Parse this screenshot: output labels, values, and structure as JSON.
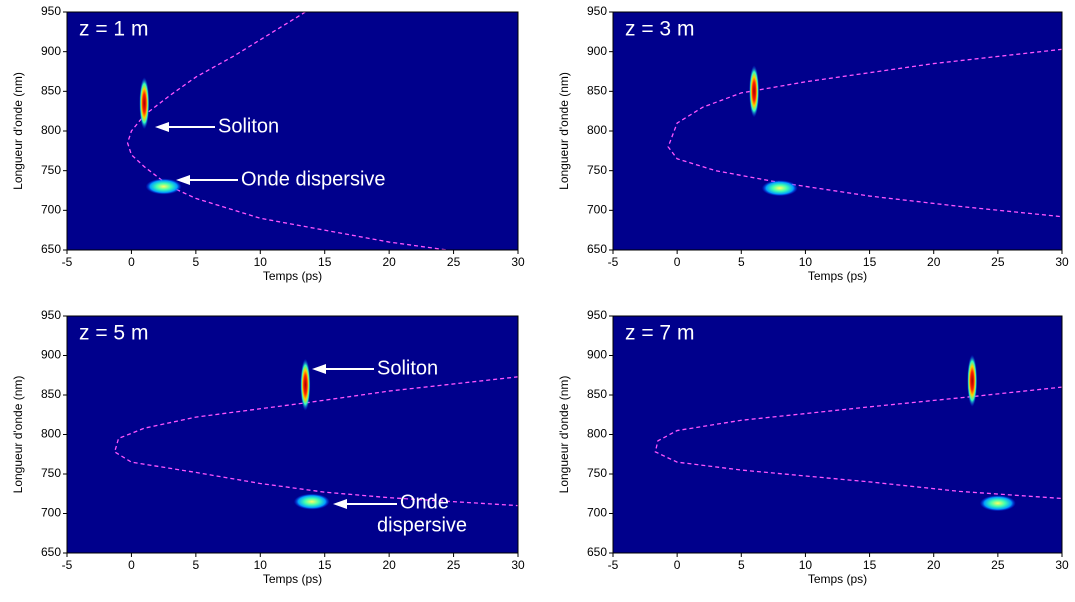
{
  "chart_data": [
    {
      "type": "spectrogram",
      "title": "z = 1 m",
      "xlabel": "Temps (ps)",
      "ylabel": "Longueur d'onde (nm)",
      "xlim": [
        -5,
        30
      ],
      "ylim": [
        650,
        950
      ],
      "xticks": [
        -5,
        0,
        5,
        10,
        15,
        20,
        25,
        30
      ],
      "yticks": [
        650,
        700,
        750,
        800,
        850,
        900,
        950
      ],
      "background": "#00008c",
      "curve_color": "#ff55ff",
      "series": [
        {
          "x": [
            13.5,
            11,
            8,
            5,
            3,
            1,
            0,
            -0.3,
            0,
            1,
            3,
            5,
            10,
            15,
            20,
            24.5
          ],
          "values": [
            950,
            925,
            895,
            868,
            845,
            820,
            800,
            785,
            770,
            755,
            730,
            715,
            690,
            675,
            660,
            650
          ]
        }
      ],
      "soliton": {
        "x": [
          1
        ],
        "values": [
          835
        ]
      },
      "dispersive_wave": {
        "x": [
          2.5
        ],
        "values": [
          730
        ]
      },
      "annotations": [
        [
          "Soliton"
        ],
        [
          "Onde dispersive"
        ]
      ]
    },
    {
      "type": "spectrogram",
      "title": "z = 3 m",
      "xlabel": "Temps (ps)",
      "ylabel": "Longueur d'onde (nm)",
      "xlim": [
        -5,
        30
      ],
      "ylim": [
        650,
        950
      ],
      "xticks": [
        -5,
        0,
        5,
        10,
        15,
        20,
        25,
        30
      ],
      "yticks": [
        650,
        700,
        750,
        800,
        850,
        900,
        950
      ],
      "background": "#00008c",
      "curve_color": "#ff55ff",
      "series": [
        {
          "x": [
            30,
            20,
            10,
            5,
            2,
            0,
            -0.7,
            0,
            3,
            8,
            15,
            22,
            30
          ],
          "values": [
            903,
            885,
            862,
            848,
            830,
            810,
            780,
            765,
            750,
            735,
            718,
            705,
            692
          ]
        }
      ],
      "soliton": {
        "x": [
          6
        ],
        "values": [
          850
        ]
      },
      "dispersive_wave": {
        "x": [
          8
        ],
        "values": [
          728
        ]
      },
      "annotations": []
    },
    {
      "type": "spectrogram",
      "title": "z = 5 m",
      "xlabel": "Temps (ps)",
      "ylabel": "Longueur d'onde (nm)",
      "xlim": [
        -5,
        30
      ],
      "ylim": [
        650,
        950
      ],
      "xticks": [
        -5,
        0,
        5,
        10,
        15,
        20,
        25,
        30
      ],
      "yticks": [
        650,
        700,
        750,
        800,
        850,
        900,
        950
      ],
      "background": "#00008c",
      "curve_color": "#ff55ff",
      "series": [
        {
          "x": [
            30,
            20,
            13.5,
            5,
            1,
            -1,
            -1.3,
            0,
            5,
            10,
            15,
            20,
            30
          ],
          "values": [
            873,
            855,
            840,
            822,
            808,
            795,
            778,
            765,
            752,
            738,
            727,
            720,
            710
          ]
        }
      ],
      "soliton": {
        "x": [
          13.5
        ],
        "values": [
          863
        ]
      },
      "dispersive_wave": {
        "x": [
          14
        ],
        "values": [
          715
        ]
      },
      "annotations": [
        [
          "Soliton"
        ],
        [
          "Onde",
          "dispersive"
        ]
      ]
    },
    {
      "type": "spectrogram",
      "title": "z = 7 m",
      "xlabel": "Temps (ps)",
      "ylabel": "Longueur d'onde (nm)",
      "xlim": [
        -5,
        30
      ],
      "ylim": [
        650,
        950
      ],
      "xticks": [
        -5,
        0,
        5,
        10,
        15,
        20,
        25,
        30
      ],
      "yticks": [
        650,
        700,
        750,
        800,
        850,
        900,
        950
      ],
      "background": "#00008c",
      "curve_color": "#ff55ff",
      "series": [
        {
          "x": [
            30,
            23,
            15,
            5,
            0,
            -1.5,
            -1.7,
            0,
            5,
            15,
            22,
            30
          ],
          "values": [
            860,
            848,
            835,
            818,
            805,
            792,
            778,
            765,
            755,
            740,
            728,
            719
          ]
        }
      ],
      "soliton": {
        "x": [
          23
        ],
        "values": [
          868
        ]
      },
      "dispersive_wave": {
        "x": [
          25
        ],
        "values": [
          713
        ]
      },
      "annotations": []
    }
  ]
}
